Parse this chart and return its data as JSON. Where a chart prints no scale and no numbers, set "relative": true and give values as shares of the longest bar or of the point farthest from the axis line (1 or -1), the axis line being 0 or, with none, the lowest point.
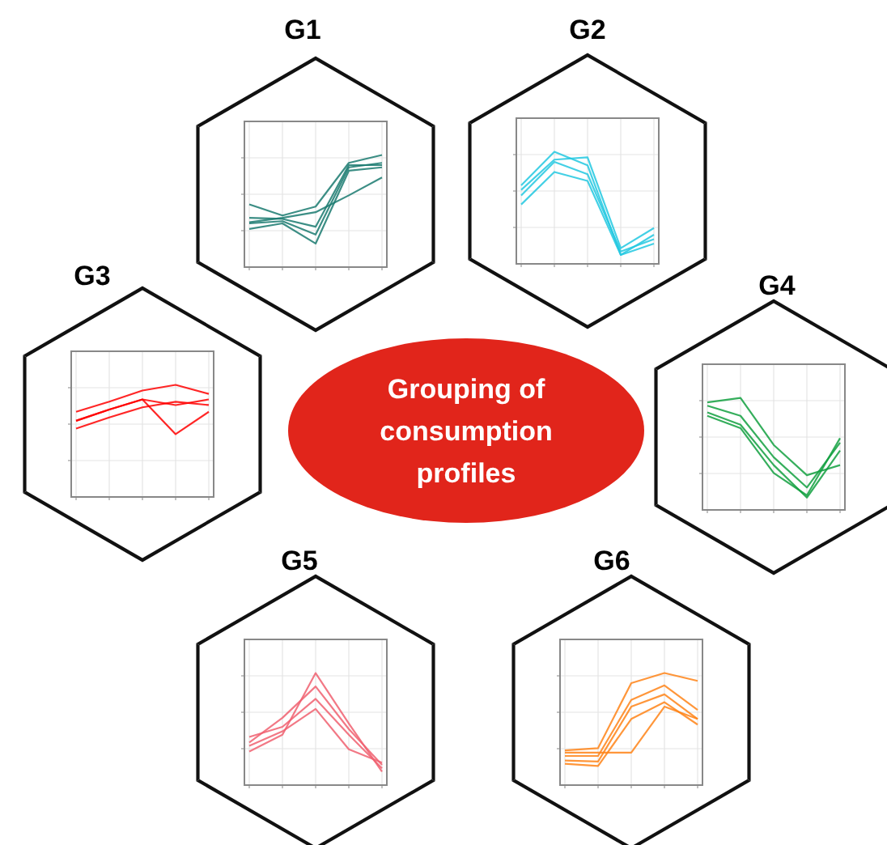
{
  "chart_data": [
    {
      "type": "line",
      "title": "G1",
      "relative": true,
      "categories": [
        null,
        null,
        null,
        null,
        null
      ],
      "grid": true,
      "tick_labels": false,
      "marker": "none",
      "series": [
        {
          "color": "#1a7a70",
          "values": [
            0.56,
            0.46,
            0.54,
            0.93,
            1
          ]
        },
        {
          "color": "#1a7a70",
          "values": [
            0.44,
            0.43,
            0.36,
            0.91,
            0.91
          ]
        },
        {
          "color": "#1a7a70",
          "values": [
            0.39,
            0.41,
            0.29,
            0.89,
            0.93
          ]
        },
        {
          "color": "#1a7a70",
          "values": [
            0.34,
            0.39,
            0.21,
            0.86,
            0.89
          ]
        },
        {
          "color": "#1a7a70",
          "values": [
            0.4,
            0.44,
            0.49,
            0.64,
            0.8
          ]
        }
      ]
    },
    {
      "type": "line",
      "title": "G2",
      "relative": true,
      "categories": [
        null,
        null,
        null,
        null,
        null
      ],
      "grid": true,
      "tick_labels": false,
      "marker": "none",
      "series": [
        {
          "color": "#22c8e0",
          "values": [
            0.7,
            1,
            0.88,
            0.08,
            0.26
          ]
        },
        {
          "color": "#22c8e0",
          "values": [
            0.61,
            0.91,
            0.8,
            0.11,
            0.22
          ]
        },
        {
          "color": "#22c8e0",
          "values": [
            0.53,
            0.82,
            0.74,
            0.08,
            0.18
          ]
        },
        {
          "color": "#22c8e0",
          "values": [
            0.66,
            0.93,
            0.95,
            0.14,
            0.32
          ]
        }
      ]
    },
    {
      "type": "line",
      "title": "G3",
      "relative": true,
      "categories": [
        null,
        null,
        null,
        null,
        null
      ],
      "grid": true,
      "tick_labels": false,
      "marker": "none",
      "series": [
        {
          "color": "#ff0000",
          "values": [
            0.76,
            0.85,
            0.95,
            1,
            0.92
          ]
        },
        {
          "color": "#ff0000",
          "values": [
            0.61,
            0.71,
            0.8,
            0.85,
            0.82
          ]
        },
        {
          "color": "#ff0000",
          "values": [
            0.68,
            0.78,
            0.87,
            0.82,
            0.87
          ]
        },
        {
          "color": "#ff0000",
          "values": [
            0.68,
            0.78,
            0.87,
            0.56,
            0.76
          ]
        }
      ]
    },
    {
      "type": "line",
      "title": "G4",
      "relative": true,
      "categories": [
        null,
        null,
        null,
        null,
        null
      ],
      "grid": true,
      "tick_labels": false,
      "marker": "none",
      "series": [
        {
          "color": "#12a040",
          "values": [
            0.93,
            0.84,
            0.47,
            0.2,
            0.6
          ]
        },
        {
          "color": "#12a040",
          "values": [
            0.87,
            0.76,
            0.4,
            0.11,
            0.53
          ]
        },
        {
          "color": "#12a040",
          "values": [
            0.96,
            1,
            0.58,
            0.31,
            0.4
          ]
        },
        {
          "color": "#12a040",
          "values": [
            0.84,
            0.73,
            0.33,
            0.13,
            0.64
          ]
        }
      ]
    },
    {
      "type": "line",
      "title": "G5",
      "relative": true,
      "categories": [
        null,
        null,
        null,
        null,
        null
      ],
      "grid": true,
      "tick_labels": false,
      "marker": "none",
      "series": [
        {
          "color": "#f06070",
          "values": [
            0.3,
            0.45,
            1,
            0.55,
            0.12
          ]
        },
        {
          "color": "#f06070",
          "values": [
            0.38,
            0.6,
            0.88,
            0.5,
            0.18
          ]
        },
        {
          "color": "#f06070",
          "values": [
            0.43,
            0.52,
            0.77,
            0.45,
            0.15
          ]
        },
        {
          "color": "#f06070",
          "values": [
            0.35,
            0.48,
            0.68,
            0.32,
            0.2
          ]
        }
      ]
    },
    {
      "type": "line",
      "title": "G6",
      "relative": true,
      "categories": [
        null,
        null,
        null,
        null,
        null
      ],
      "grid": true,
      "tick_labels": false,
      "marker": "none",
      "series": [
        {
          "color": "#ff8418",
          "values": [
            0.26,
            0.26,
            0.76,
            0.89,
            0.67
          ]
        },
        {
          "color": "#ff8418",
          "values": [
            0.22,
            0.21,
            0.7,
            0.81,
            0.59
          ]
        },
        {
          "color": "#ff8418",
          "values": [
            0.31,
            0.33,
            0.91,
            1,
            0.93
          ]
        },
        {
          "color": "#ff8418",
          "values": [
            0.19,
            0.17,
            0.59,
            0.74,
            0.54
          ]
        },
        {
          "color": "#ff8418",
          "values": [
            0.29,
            0.29,
            0.29,
            0.7,
            0.59
          ]
        }
      ]
    },
    {
      "type": "other",
      "title": "Grouping of consumption profiles"
    }
  ]
}
